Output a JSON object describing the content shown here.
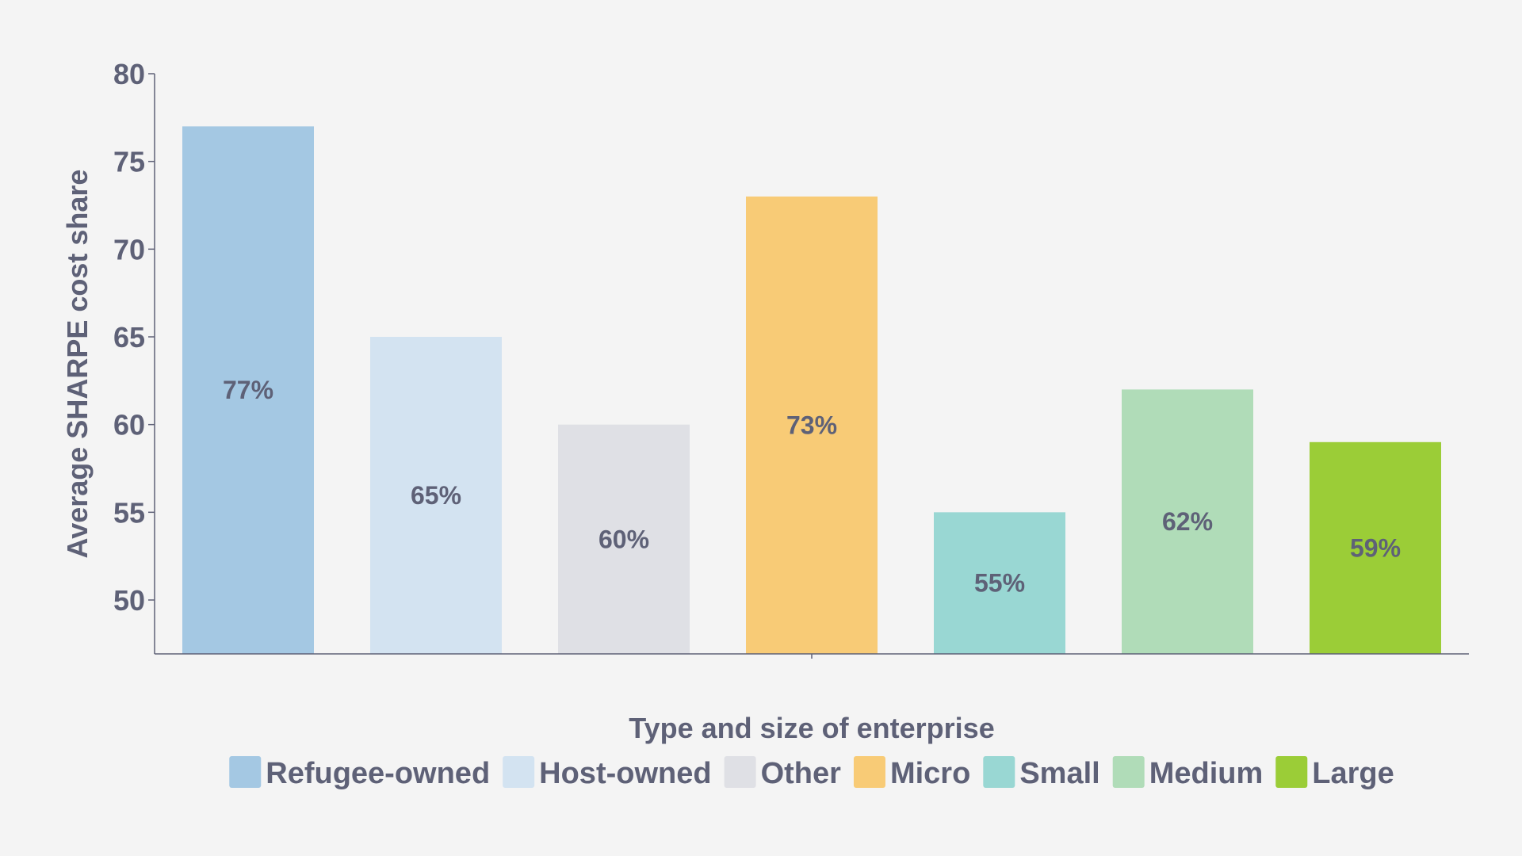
{
  "chart_data": {
    "type": "bar",
    "categories": [
      "Refugee-owned",
      "Host-owned",
      "Other",
      "Micro",
      "Small",
      "Medium",
      "Large"
    ],
    "values": [
      77,
      65,
      60,
      73,
      55,
      62,
      59
    ],
    "data_labels": [
      "77%",
      "65%",
      "60%",
      "73%",
      "55%",
      "62%",
      "59%"
    ],
    "colors": [
      "#a4c8e3",
      "#d3e3f1",
      "#dfe0e5",
      "#f8cb76",
      "#99d7d3",
      "#b0dcb8",
      "#9bcd37"
    ],
    "xlabel": "Type and size of enterprise",
    "ylabel": "Average SHARPE cost share",
    "ylim": [
      47,
      80
    ],
    "yticks": [
      50,
      55,
      60,
      65,
      70,
      75,
      80
    ],
    "grid": false,
    "legend": {
      "placement": "bottom",
      "entries": [
        "Refugee-owned",
        "Host-owned",
        "Other",
        "Micro",
        "Small",
        "Medium",
        "Large"
      ]
    }
  },
  "colors": {
    "background": "#f4f4f4",
    "text": "#5e6177",
    "axis": "#5e6177"
  }
}
